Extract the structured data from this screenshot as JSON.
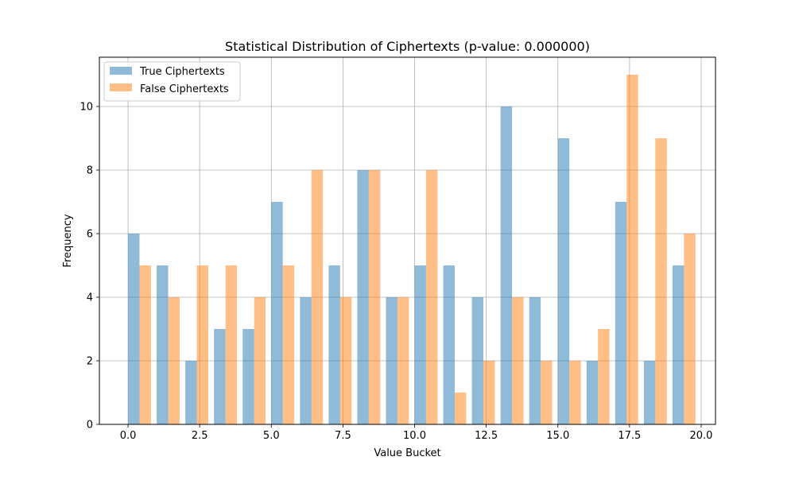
{
  "chart_data": {
    "type": "bar",
    "title": "Statistical Distribution of Ciphertexts (p-value: 0.000000)",
    "xlabel": "Value Bucket",
    "ylabel": "Frequency",
    "xlim": [
      -1,
      20.5
    ],
    "ylim": [
      0,
      11.55
    ],
    "x_ticks": [
      "0.0",
      "2.5",
      "5.0",
      "7.5",
      "10.0",
      "12.5",
      "15.0",
      "17.5",
      "20.0"
    ],
    "y_ticks": [
      "0",
      "2",
      "4",
      "6",
      "8",
      "10"
    ],
    "grid": true,
    "legend_position": "top-left",
    "bar_width": 0.4,
    "x": [
      0,
      1,
      2,
      3,
      4,
      5,
      6,
      7,
      8,
      9,
      10,
      11,
      12,
      13,
      14,
      15,
      16,
      17,
      18,
      19
    ],
    "series": [
      {
        "name": "True Ciphertexts",
        "offset": 0,
        "color": "#1f77b4",
        "opacity": 0.5,
        "values": [
          6,
          5,
          2,
          3,
          3,
          7,
          4,
          5,
          8,
          4,
          5,
          5,
          4,
          10,
          4,
          9,
          2,
          7,
          2,
          5
        ]
      },
      {
        "name": "False Ciphertexts",
        "offset": 0.4,
        "color": "#ff7f0e",
        "opacity": 0.5,
        "values": [
          5,
          4,
          5,
          5,
          4,
          5,
          8,
          4,
          8,
          4,
          8,
          1,
          2,
          4,
          2,
          2,
          3,
          11,
          9,
          6
        ]
      }
    ]
  }
}
